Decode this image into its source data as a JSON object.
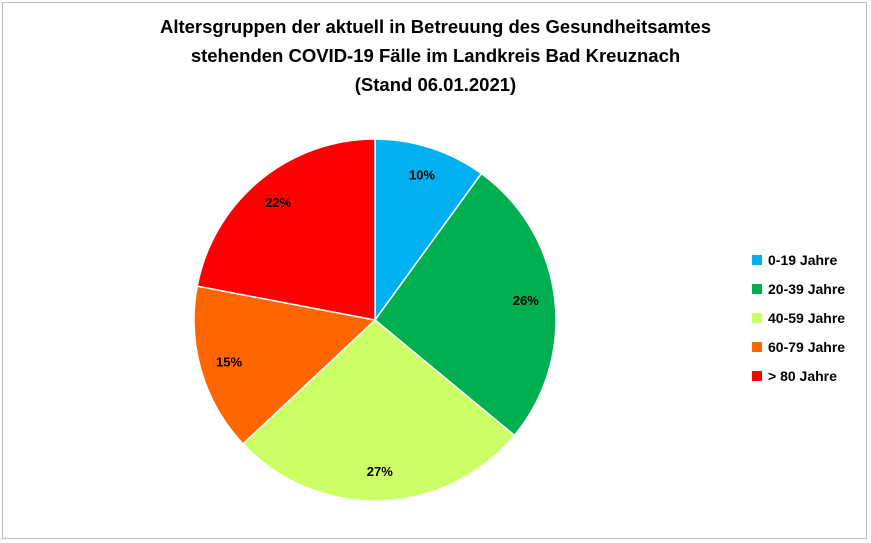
{
  "chart_data": {
    "type": "pie",
    "title": [
      "Altersgruppen der aktuell in Betreuung des Gesundheitsamtes",
      "stehenden COVID-19 Fälle im Landkreis Bad Kreuznach",
      "(Stand 06.01.2021)"
    ],
    "categories": [
      "0-19 Jahre",
      "20-39 Jahre",
      "40-59 Jahre",
      "60-79 Jahre",
      "> 80 Jahre"
    ],
    "values": [
      10,
      26,
      27,
      15,
      22
    ],
    "data_labels": [
      "10%",
      "26%",
      "27%",
      "15%",
      "22%"
    ],
    "colors": [
      "#00b0f0",
      "#00b050",
      "#ccff66",
      "#ff6600",
      "#ff0000"
    ],
    "legend_position": "right"
  }
}
